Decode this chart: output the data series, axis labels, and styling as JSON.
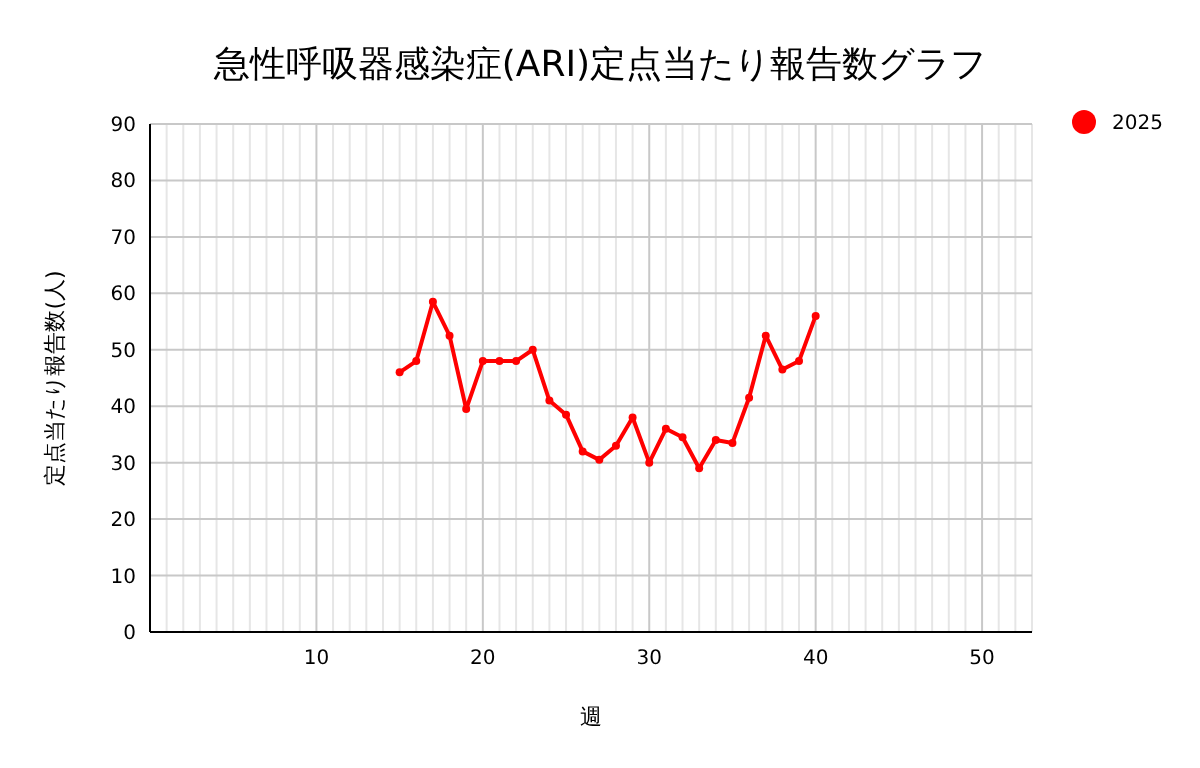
{
  "chart_data": {
    "type": "line",
    "title": "急性呼吸器感染症(ARI)定点当たり報告数グラフ",
    "xlabel": "週",
    "ylabel": "定点当たり報告数(人)",
    "xlim": [
      0,
      53
    ],
    "xticks": [
      10,
      20,
      30,
      40,
      50
    ],
    "ylim": [
      0,
      90
    ],
    "yticks": [
      0,
      10,
      20,
      30,
      40,
      50,
      60,
      70,
      80,
      90
    ],
    "grid": true,
    "legend": "top right",
    "marker": "circle",
    "series": [
      {
        "name": "2025",
        "color": "#ff0000",
        "x": [
          15,
          16,
          17,
          18,
          19,
          20,
          21,
          22,
          23,
          24,
          25,
          26,
          27,
          28,
          29,
          30,
          31,
          32,
          33,
          34,
          35,
          36,
          37,
          38,
          39,
          40
        ],
        "values": [
          46,
          48,
          58.5,
          52.5,
          39.5,
          48,
          48,
          48,
          50,
          41,
          38.5,
          32,
          30.5,
          33,
          38,
          30,
          36,
          34.5,
          29,
          34,
          33.5,
          41.5,
          52.5,
          46.5,
          48,
          56
        ]
      }
    ]
  }
}
